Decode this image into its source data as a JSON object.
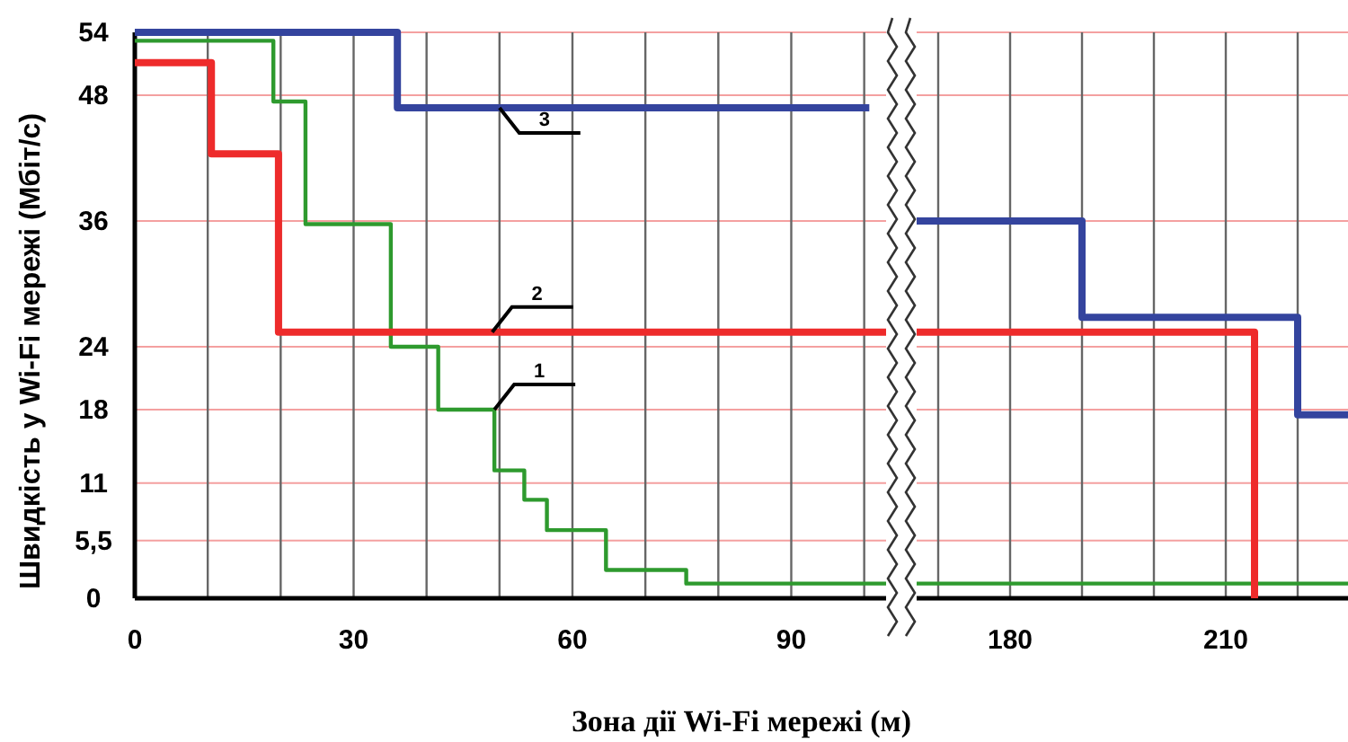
{
  "chart_data": [
    {
      "type": "step",
      "xlabel": "Зона дії Wi-Fi мережі (м)",
      "ylabel": "Швидкість у Wi-Fi мережі (Мбіт/с)",
      "xlim": [
        0,
        103
      ],
      "xticks": [
        0,
        {
          "value": 10,
          "label": null
        },
        {
          "value": 20,
          "label": null
        },
        30,
        {
          "value": 40,
          "label": null
        },
        {
          "value": 50,
          "label": null
        },
        60,
        {
          "value": 70,
          "label": null
        },
        {
          "value": 80,
          "label": null
        },
        90,
        {
          "value": 100,
          "label": null
        }
      ],
      "ylim": [
        0,
        54
      ],
      "yticks": [
        0,
        {
          "value": 5.5,
          "label": "5,5"
        },
        11,
        18,
        24,
        36,
        48,
        54
      ],
      "grid": true,
      "series": [
        {
          "color": "#2e9a2e",
          "x": [
            0,
            19,
            23.4,
            35.1,
            41.6,
            49.3,
            53.4,
            56.5,
            64.6,
            75.6,
            103
          ],
          "values": [
            53.2,
            47.4,
            35.7,
            24,
            18,
            12.2,
            9.4,
            6.5,
            2.7,
            1.4,
            1.4
          ]
        },
        {
          "color": "#ee2b2b",
          "x": [
            0,
            10.5,
            19.7,
            103
          ],
          "values": [
            51.1,
            42.4,
            25.4,
            25.4
          ]
        },
        {
          "color": "#34449e",
          "x": [
            0,
            36,
            100.7
          ],
          "values": [
            54,
            46.8,
            46.8
          ]
        }
      ],
      "annotations": [
        {
          "text": "1",
          "x": 49.3,
          "y": 18
        },
        {
          "text": "2",
          "x": 49,
          "y": 25.4
        },
        {
          "text": "3",
          "x": 50,
          "y": 46.8
        }
      ]
    },
    {
      "type": "step",
      "xlim": [
        167,
        227
      ],
      "xticks": [
        {
          "value": 170,
          "label": null
        },
        180,
        {
          "value": 190,
          "label": null
        },
        {
          "value": 200,
          "label": null
        },
        210,
        {
          "value": 220,
          "label": null
        }
      ],
      "ylim": [
        0,
        54
      ],
      "yticks": [
        0,
        5.5,
        11,
        18,
        24,
        36,
        48,
        54
      ],
      "grid": true,
      "tick_labels": "x",
      "series": [
        {
          "color": "#2e9a2e",
          "x": [
            167,
            227
          ],
          "values": [
            1.4,
            1.4
          ]
        },
        {
          "color": "#ee2b2b",
          "x": [
            167,
            214,
            214
          ],
          "values": [
            25.4,
            0,
            0
          ]
        },
        {
          "color": "#34449e",
          "x": [
            167,
            190,
            220,
            227
          ],
          "values": [
            36,
            26.8,
            17.5,
            17.5
          ]
        }
      ]
    }
  ]
}
